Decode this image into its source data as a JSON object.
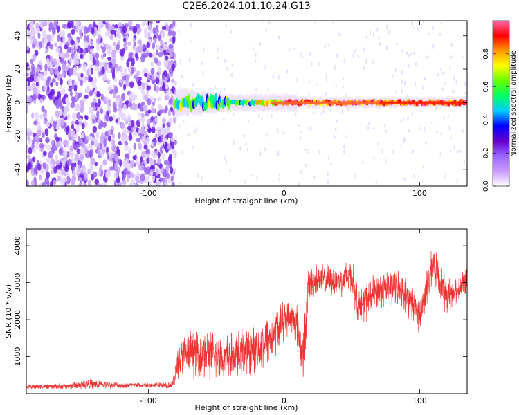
{
  "title": "C2E6.2024.101.10.24.G13",
  "colors": {
    "snr_line": "#ee3333",
    "axis": "#000000"
  },
  "chart_data": [
    {
      "type": "heatmap",
      "xlabel": "Height of straight line (km)",
      "ylabel": "Frequency (Hz)",
      "xlim": [
        -190,
        135
      ],
      "ylim": [
        -50,
        49
      ],
      "xticks": [
        -100,
        0,
        100
      ],
      "yticks": [
        -40,
        -20,
        0,
        20,
        40
      ],
      "colorbar": {
        "label": "Normalized spectral amplitude",
        "range": [
          0,
          1
        ],
        "ticks": [
          0.0,
          0.2,
          0.4,
          0.6,
          0.8
        ],
        "colormap": [
          "#ffffff",
          "#cc99ff",
          "#9966ff",
          "#6600cc",
          "#0000ff",
          "#00ccff",
          "#00ff66",
          "#66ff00",
          "#ffff00",
          "#ff9900",
          "#ff0000",
          "#ff66aa"
        ]
      },
      "description_bands": {
        "noise_region_x": [
          -190,
          -80
        ],
        "ridge_center_hz": 0,
        "ridge_start_x": -80
      }
    },
    {
      "type": "line",
      "xlabel": "Height of straight line (km)",
      "ylabel": "SNR (10 * v/v)",
      "xlim": [
        -190,
        135
      ],
      "ylim": [
        0,
        4450
      ],
      "xticks": [
        -100,
        0,
        100
      ],
      "yticks": [
        1000,
        2000,
        3000,
        4000
      ],
      "series": [
        {
          "envelope": {
            "x": [
              -190,
              -160,
              -145,
              -130,
              -100,
              -82,
              -78,
              -70,
              -55,
              -40,
              -25,
              -10,
              0,
              5,
              10,
              14,
              18,
              25,
              40,
              50,
              55,
              70,
              85,
              100,
              110,
              120,
              135
            ],
            "mean": [
              180,
              200,
              260,
              230,
              220,
              250,
              900,
              1100,
              1050,
              1000,
              1150,
              1500,
              2000,
              2100,
              1800,
              900,
              2900,
              3100,
              3050,
              3200,
              2300,
              2800,
              2900,
              2100,
              3500,
              2600,
              3050
            ],
            "spread": [
              60,
              80,
              140,
              90,
              70,
              100,
              500,
              600,
              650,
              600,
              650,
              700,
              500,
              400,
              600,
              800,
              500,
              400,
              400,
              500,
              500,
              500,
              450,
              500,
              500,
              500,
              350
            ]
          }
        }
      ]
    }
  ]
}
